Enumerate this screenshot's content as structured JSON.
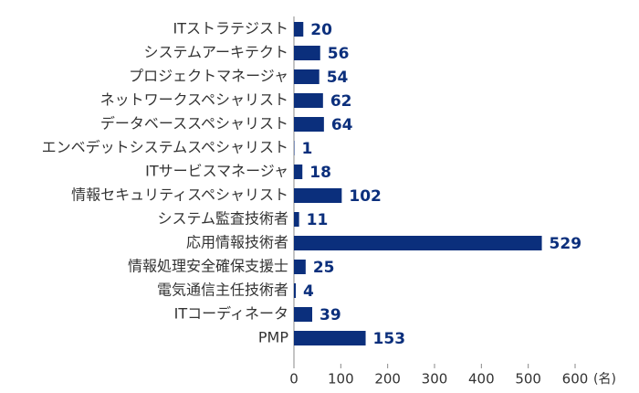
{
  "chart_data": {
    "type": "bar",
    "orientation": "horizontal",
    "categories": [
      "ITストラテジスト",
      "システムアーキテクト",
      "プロジェクトマネージャ",
      "ネットワークスペシャリスト",
      "データベーススペシャリスト",
      "エンベデットシステムスペシャリスト",
      "ITサービスマネージャ",
      "情報セキュリティスペシャリスト",
      "システム監査技術者",
      "応用情報技術者",
      "情報処理安全確保支援士",
      "電気通信主任技術者",
      "ITコーディネータ",
      "PMP"
    ],
    "values": [
      20,
      56,
      54,
      62,
      64,
      1,
      18,
      102,
      11,
      529,
      25,
      4,
      39,
      153
    ],
    "color": "#0b2f7c",
    "xlim": [
      0,
      600
    ],
    "xticks": [
      0,
      100,
      200,
      300,
      400,
      500,
      600
    ],
    "xlabel": "(名)"
  }
}
